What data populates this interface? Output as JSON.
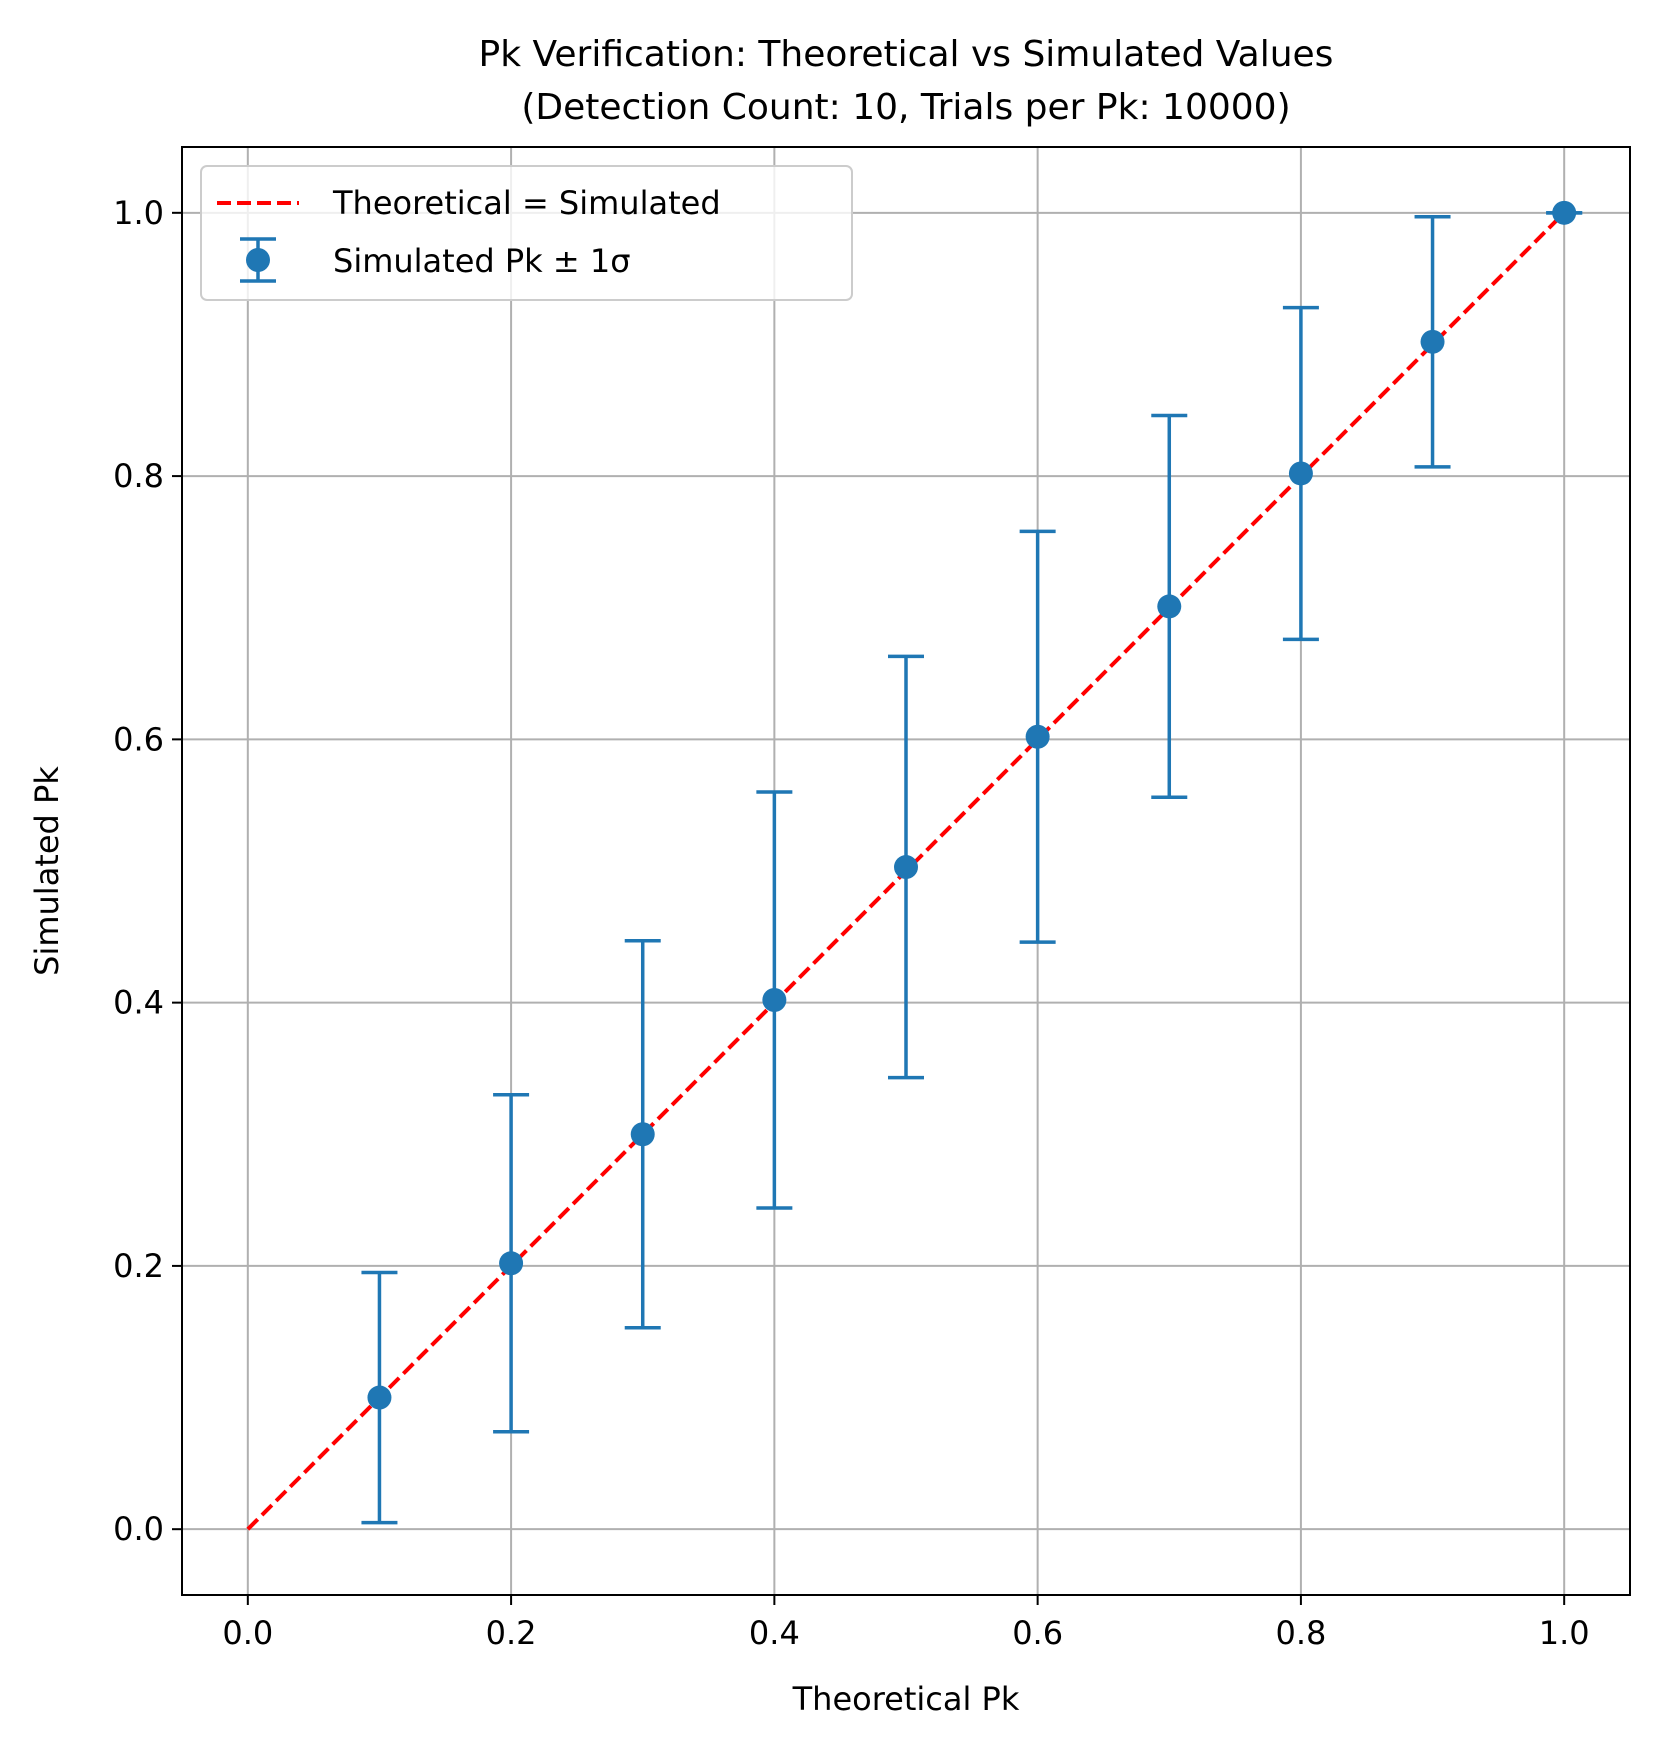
{
  "chart_data": {
    "type": "scatter",
    "title": "Pk Verification: Theoretical vs Simulated Values",
    "subtitle": "(Detection Count: 10, Trials per Pk: 10000)",
    "xlabel": "Theoretical Pk",
    "ylabel": "Simulated Pk",
    "xlim": [
      -0.05,
      1.05
    ],
    "ylim": [
      -0.05,
      1.05
    ],
    "grid": true,
    "legend_position": "top-left",
    "x_ticks": [
      0.0,
      0.2,
      0.4,
      0.6,
      0.8,
      1.0
    ],
    "x_tick_labels": [
      "0.0",
      "0.2",
      "0.4",
      "0.6",
      "0.8",
      "1.0"
    ],
    "y_ticks": [
      0.0,
      0.2,
      0.4,
      0.6,
      0.8,
      1.0
    ],
    "y_tick_labels": [
      "0.0",
      "0.2",
      "0.4",
      "0.6",
      "0.8",
      "1.0"
    ],
    "reference_line": {
      "name": "Theoretical = Simulated",
      "x": [
        0.0,
        1.0
      ],
      "y": [
        0.0,
        1.0
      ],
      "color": "#ff0000",
      "style": "dashed"
    },
    "series": [
      {
        "name": "Simulated Pk ± 1σ",
        "color": "#1f77b4",
        "x": [
          0.1,
          0.2,
          0.3,
          0.4,
          0.5,
          0.6,
          0.7,
          0.8,
          0.9,
          1.0
        ],
        "y": [
          0.1,
          0.202,
          0.3,
          0.402,
          0.503,
          0.602,
          0.701,
          0.802,
          0.902,
          1.0
        ],
        "error": [
          0.095,
          0.128,
          0.147,
          0.158,
          0.16,
          0.156,
          0.145,
          0.126,
          0.095,
          0.0
        ]
      }
    ]
  }
}
